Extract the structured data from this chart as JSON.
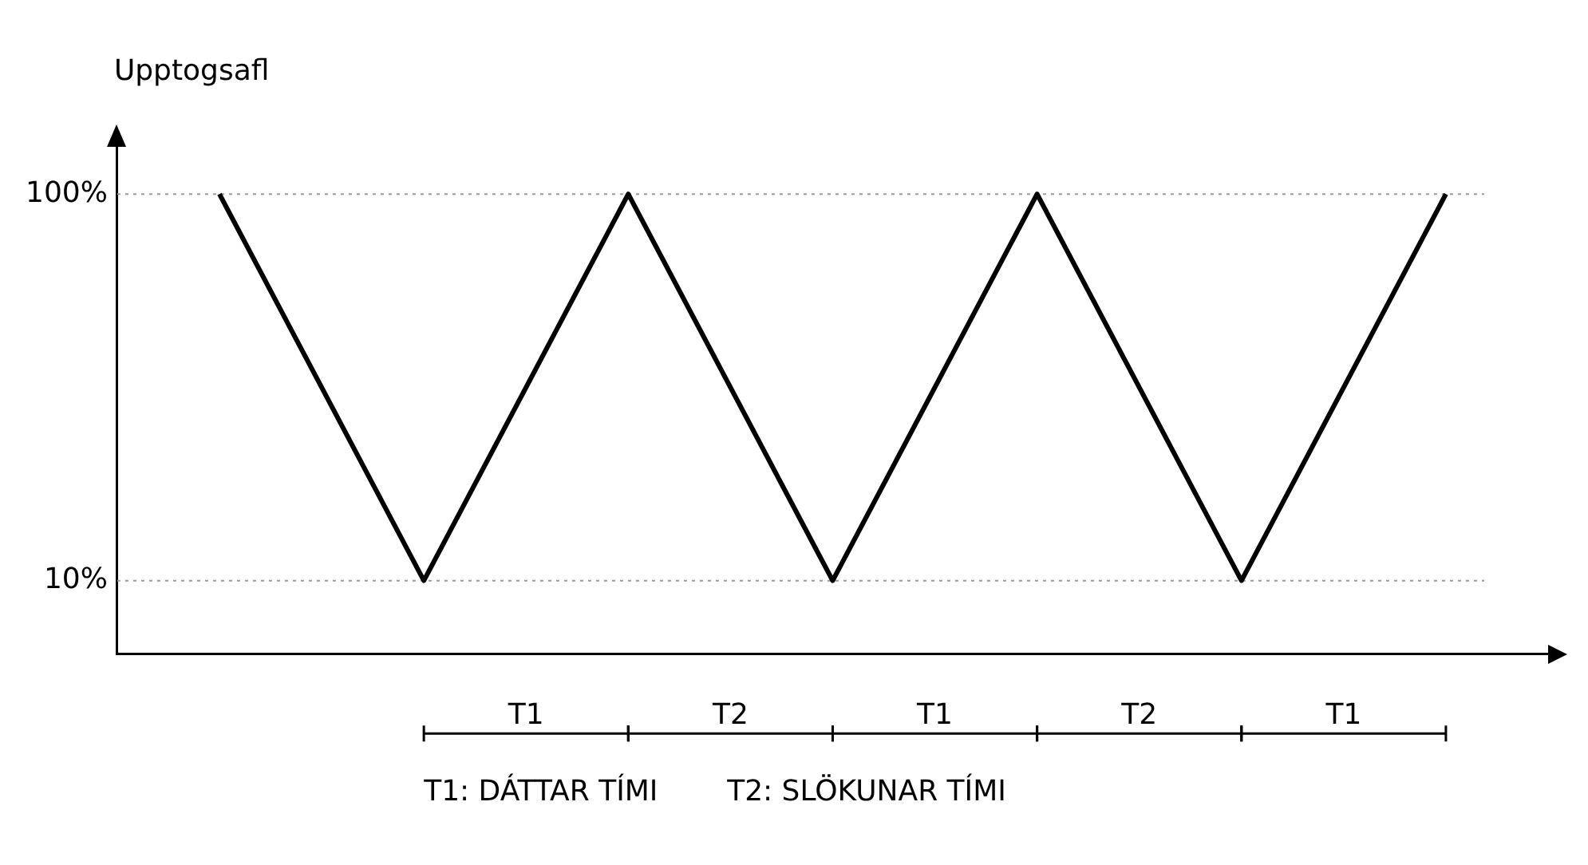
{
  "chart_data": {
    "type": "line",
    "ylabel": "Upptogsafl",
    "categories": [
      null,
      null,
      null,
      null,
      null,
      null,
      null
    ],
    "series": [
      {
        "color": "#000000",
        "values": [
          100,
          10,
          100,
          10,
          100,
          10,
          100
        ]
      }
    ],
    "ylim": [
      -7,
      111
    ],
    "yticks": [
      {
        "value": 10,
        "label": "10%"
      },
      {
        "value": 100,
        "label": "100%"
      }
    ],
    "grid": false,
    "legend": false,
    "marker": "none",
    "line_style": "solid",
    "ref_lines": [
      {
        "axis": "y",
        "value": 100,
        "line_style": "dotted",
        "color": "#999999"
      },
      {
        "axis": "y",
        "value": 10,
        "line_style": "dotted",
        "color": "#999999"
      }
    ],
    "annotations": [
      "T1",
      "T2",
      "T1",
      "T2",
      "T1",
      "T1: DÁTTAR TÍMI",
      "T2: SLÖKUNAR TÍMI"
    ]
  }
}
